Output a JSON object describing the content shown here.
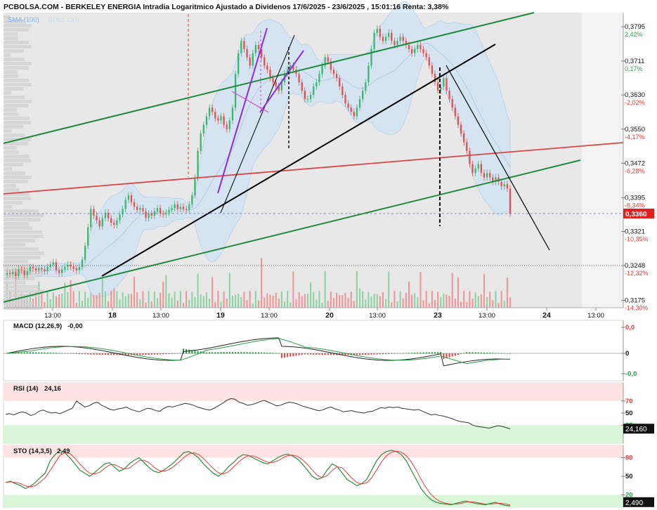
{
  "header": {
    "title": "PCBOLSA.COM - BERKELEY ENERGIA Intradia Logaritmico Ajustado a Dividenos 17/6/2025 - 23/6/2025 , 15:01:16 Renta: 3,38%",
    "legend_sma": "SMA (100)",
    "legend_boll": "BOLL (20)"
  },
  "colors": {
    "up": "#3cb371",
    "down": "#e05050",
    "channel": "#1f8a3c",
    "trend": "#000000",
    "red_line": "#d94545",
    "purple": "#8a2be2",
    "boll_fill": "#cfe3f3",
    "last_price_bg": "#e02020"
  },
  "chart_data": [
    {
      "type": "candlestick",
      "title": "",
      "x_tick_labels": [
        "13:00",
        "18",
        "13:00",
        "19",
        "13:00",
        "20",
        "13:00",
        "23",
        "13:00",
        "24",
        "13:00"
      ],
      "y_axis": {
        "scale": "log",
        "ticks": [
          {
            "price": "0,3795",
            "pct": "2,42%"
          },
          {
            "price": "0,3711",
            "pct": "0,17%"
          },
          {
            "price": "0,3630",
            "pct": "-2,02%"
          },
          {
            "price": "0,3550",
            "pct": "-4,17%"
          },
          {
            "price": "0,3472",
            "pct": "-6,28%"
          },
          {
            "price": "0,3395",
            "pct": "-8,34%"
          },
          {
            "price": "0,3321",
            "pct": "-10,35%"
          },
          {
            "price": "0,3248",
            "pct": "-12,32%"
          },
          {
            "price": "0,3175",
            "pct": "-14,30%"
          }
        ],
        "ylim": [
          0.316,
          0.383
        ]
      },
      "last_price_label": "0,3360",
      "last_price": 0.336,
      "closes": [
        0.3232,
        0.323,
        0.3235,
        0.3226,
        0.324,
        0.3238,
        0.3228,
        0.3236,
        0.3245,
        0.3242,
        0.3238,
        0.3243,
        0.324,
        0.3236,
        0.3245,
        0.325,
        0.3255,
        0.3238,
        0.3232,
        0.324,
        0.3245,
        0.325,
        0.3246,
        0.3242,
        0.3238,
        0.3245,
        0.326,
        0.329,
        0.333,
        0.337,
        0.3355,
        0.3345,
        0.3332,
        0.335,
        0.3362,
        0.335,
        0.334,
        0.3335,
        0.3345,
        0.3358,
        0.337,
        0.339,
        0.34,
        0.3385,
        0.3375,
        0.3368,
        0.3372,
        0.3365,
        0.335,
        0.336,
        0.3355,
        0.3365,
        0.3372,
        0.336,
        0.3358,
        0.3362,
        0.3368,
        0.3372,
        0.338,
        0.337,
        0.3375,
        0.337,
        0.3368,
        0.338,
        0.34,
        0.344,
        0.35,
        0.354,
        0.356,
        0.358,
        0.36,
        0.359,
        0.3575,
        0.357,
        0.358,
        0.356,
        0.355,
        0.357,
        0.36,
        0.368,
        0.373,
        0.376,
        0.374,
        0.372,
        0.37,
        0.373,
        0.375,
        0.374,
        0.372,
        0.37,
        0.369,
        0.367,
        0.366,
        0.365,
        0.364,
        0.366,
        0.368,
        0.369,
        0.37,
        0.369,
        0.368,
        0.366,
        0.364,
        0.362,
        0.362,
        0.363,
        0.365,
        0.366,
        0.368,
        0.37,
        0.372,
        0.371,
        0.369,
        0.368,
        0.367,
        0.365,
        0.363,
        0.361,
        0.36,
        0.359,
        0.358,
        0.36,
        0.362,
        0.364,
        0.366,
        0.37,
        0.374,
        0.378,
        0.379,
        0.377,
        0.376,
        0.377,
        0.378,
        0.376,
        0.375,
        0.376,
        0.377,
        0.376,
        0.375,
        0.374,
        0.373,
        0.374,
        0.375,
        0.374,
        0.373,
        0.372,
        0.37,
        0.368,
        0.366,
        0.364,
        0.365,
        0.367,
        0.364,
        0.362,
        0.36,
        0.358,
        0.356,
        0.354,
        0.352,
        0.35,
        0.347,
        0.345,
        0.346,
        0.347,
        0.345,
        0.344,
        0.345,
        0.344,
        0.343,
        0.344,
        0.343,
        0.342,
        0.3425,
        0.3415,
        0.336
      ],
      "macd_panel": {
        "label": "MACD (12,26,9)",
        "value": "-0,00",
        "ticks": [
          "0,0",
          "0",
          "-0,0"
        ]
      },
      "rsi_panel": {
        "label": "RSI (14)",
        "value": "24,16",
        "last_label": "24,160",
        "ticks": [
          "70",
          "50",
          "30"
        ],
        "values": [
          48,
          49,
          47,
          50,
          52,
          50,
          46,
          48,
          53,
          55,
          52,
          50,
          51,
          49,
          52,
          55,
          58,
          70,
          65,
          60,
          62,
          66,
          68,
          63,
          60,
          56,
          55,
          57,
          58,
          60,
          56,
          54,
          52,
          55,
          58,
          57,
          54,
          53,
          58,
          61,
          60,
          62,
          64,
          66,
          65,
          63,
          60,
          58,
          56,
          55,
          58,
          62,
          66,
          71,
          74,
          73,
          68,
          66,
          63,
          64,
          66,
          69,
          71,
          68,
          65,
          62,
          63,
          66,
          68,
          67,
          65,
          62,
          60,
          58,
          56,
          54,
          55,
          58,
          60,
          57,
          55,
          52,
          53,
          54,
          52,
          51,
          50,
          52,
          53,
          56,
          59,
          58,
          60,
          59,
          60,
          58,
          57,
          56,
          55,
          56,
          53,
          50,
          47,
          48,
          46,
          45,
          43,
          41,
          38,
          36,
          35,
          34,
          30,
          28,
          27,
          26,
          25,
          27,
          29,
          28,
          26,
          24
        ]
      },
      "sto_panel": {
        "label": "STO (14,3,5)",
        "value": "2,49",
        "last_label": "2,490",
        "ticks": [
          "80",
          "50",
          "20"
        ],
        "values": [
          40,
          42,
          38,
          35,
          30,
          34,
          40,
          48,
          55,
          75,
          85,
          92,
          88,
          80,
          70,
          60,
          55,
          50,
          56,
          63,
          70,
          72,
          65,
          58,
          62,
          70,
          76,
          80,
          72,
          64,
          58,
          56,
          60,
          66,
          72,
          80,
          88,
          90,
          86,
          80,
          70,
          62,
          55,
          50,
          56,
          65,
          72,
          80,
          85,
          84,
          80,
          76,
          72,
          70,
          75,
          80,
          84,
          86,
          83,
          78,
          70,
          60,
          50,
          45,
          48,
          60,
          70,
          66,
          56,
          45,
          40,
          35,
          38,
          45,
          60,
          75,
          85,
          90,
          92,
          90,
          85,
          75,
          60,
          45,
          30,
          20,
          12,
          8,
          6,
          5,
          4,
          6,
          8,
          10,
          8,
          6,
          5,
          4,
          6,
          8,
          5,
          3,
          2
        ]
      }
    }
  ]
}
